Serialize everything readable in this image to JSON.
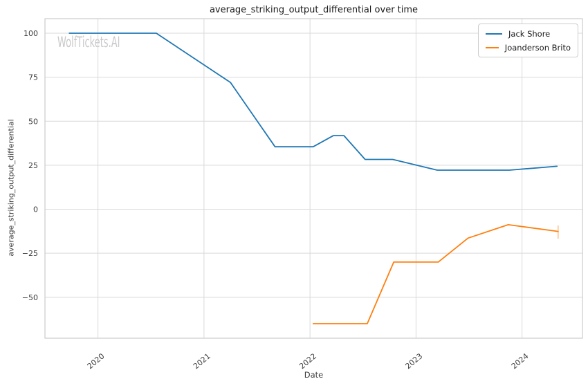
{
  "watermark": "WolfTickets.AI",
  "colors": {
    "series_blue": "#1f77b4",
    "series_orange": "#ff7f0e",
    "grid": "#d9d9d9",
    "spine": "#cccccc",
    "tick_text": "#3d3d3d",
    "watermark": "#c9c9c9"
  },
  "chart_data": {
    "type": "line",
    "title": "average_striking_output_differential over time",
    "xlabel": "Date",
    "ylabel": "average_striking_output_differential",
    "xlim": [
      2019.5,
      2024.57
    ],
    "ylim": [
      -73.25,
      108.25
    ],
    "grid": true,
    "legend_position": "upper right",
    "x_ticks": [
      2020,
      2021,
      2022,
      2023,
      2024
    ],
    "x_tick_labels": [
      "2020",
      "2021",
      "2022",
      "2023",
      "2024"
    ],
    "y_ticks": [
      100,
      75,
      50,
      25,
      0,
      -25,
      -50
    ],
    "y_tick_labels": [
      "100",
      "75",
      "50",
      "25",
      "0",
      "−25",
      "−50"
    ],
    "series": [
      {
        "name": "Jack Shore",
        "color": "#1f77b4",
        "x": [
          2019.73,
          2020.55,
          2021.25,
          2021.67,
          2022.03,
          2022.22,
          2022.32,
          2022.52,
          2022.78,
          2023.2,
          2023.88,
          2024.33
        ],
        "y": [
          100,
          100,
          72,
          35.5,
          35.5,
          41.8,
          41.8,
          28.3,
          28.3,
          22.2,
          22.2,
          24.4
        ]
      },
      {
        "name": "Joanderson Brito",
        "color": "#ff7f0e",
        "x": [
          2022.03,
          2022.54,
          2022.79,
          2023.21,
          2023.49,
          2023.87,
          2024.34
        ],
        "y": [
          -65,
          -65,
          -30,
          -30,
          -16.4,
          -8.8,
          -12.6
        ],
        "error_bar": {
          "x": 2024.34,
          "low": -16.7,
          "high": -9.2
        }
      }
    ]
  }
}
